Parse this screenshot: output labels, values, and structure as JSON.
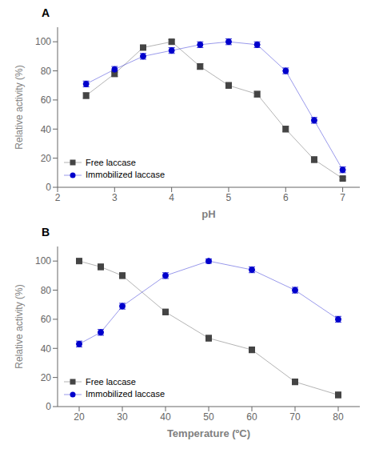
{
  "chart_data": [
    {
      "type": "line",
      "title": "A",
      "xlabel": "pH",
      "ylabel": "Relative activity (%)",
      "x": [
        2.5,
        3.0,
        3.5,
        4.0,
        4.5,
        5.0,
        5.5,
        6.0,
        6.5,
        7.0
      ],
      "series": [
        {
          "name": "Free laccase",
          "color": "#444444",
          "marker": "square",
          "values": [
            63,
            78,
            96,
            100,
            83,
            70,
            64,
            40,
            19,
            6
          ],
          "errors": [
            2,
            2,
            1.5,
            1.5,
            2,
            2,
            2,
            2,
            2,
            1
          ]
        },
        {
          "name": "Immobilized laccase",
          "color": "#0000cc",
          "marker": "circle",
          "values": [
            71,
            81,
            90,
            94,
            98,
            100,
            98,
            80,
            46,
            12
          ],
          "errors": [
            2,
            2,
            2,
            2,
            2,
            2,
            2,
            2,
            2,
            2
          ]
        }
      ],
      "xlim": [
        2,
        7.3
      ],
      "ylim": [
        0,
        110
      ],
      "xticks": [
        2,
        3,
        4,
        5,
        6,
        7
      ],
      "yticks": [
        0,
        20,
        40,
        60,
        80,
        100
      ],
      "legend": "lower left",
      "grid": false
    },
    {
      "type": "line",
      "title": "B",
      "xlabel": "Temperature (ºC)",
      "ylabel": "Relative activity (%)",
      "x": [
        20,
        25,
        30,
        40,
        50,
        60,
        70,
        80
      ],
      "series": [
        {
          "name": "Free laccase",
          "color": "#444444",
          "marker": "square",
          "values": [
            100,
            96,
            90,
            65,
            47,
            39,
            17,
            8
          ],
          "errors": [
            1.5,
            2,
            2,
            2,
            2,
            2,
            2,
            2
          ]
        },
        {
          "name": "Immobilized laccase",
          "color": "#0000cc",
          "marker": "circle",
          "values": [
            43,
            51,
            69,
            90,
            100,
            94,
            80,
            60
          ],
          "errors": [
            2,
            2,
            2,
            2,
            1.5,
            2,
            2,
            2
          ]
        }
      ],
      "xlim": [
        15,
        85
      ],
      "ylim": [
        0,
        110
      ],
      "xticks": [
        20,
        30,
        40,
        50,
        60,
        70,
        80
      ],
      "yticks": [
        0,
        20,
        40,
        60,
        80,
        100
      ],
      "legend": "lower left",
      "grid": false
    }
  ]
}
